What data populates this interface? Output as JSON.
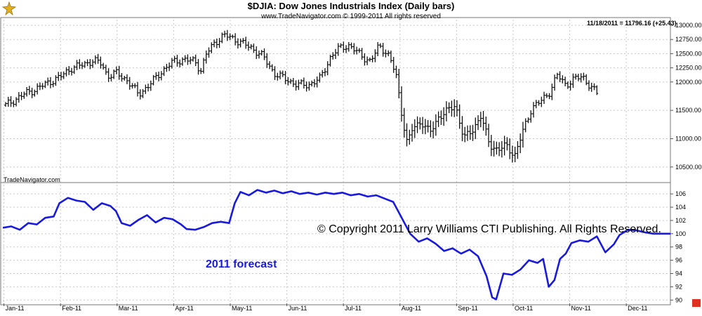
{
  "header": {
    "title": "$DJIA:  Dow Jones Industrials Index  (Daily bars)",
    "subtitle": "www.TradeNavigator.com © 1999-2011 All rights reserved",
    "last_value": "11/18/2011 = 11796.16 (+25.43)",
    "credit": "TradeNavigator.com",
    "logo_icon": "tradenavigator-logo-icon"
  },
  "annotations": {
    "copyright": "© Copyright 2011 Larry Williams CTI Publishing. All Rights Reserved.",
    "forecast_label": "2011 forecast"
  },
  "colors": {
    "forecast_line": "#1a1adc",
    "bars": "#000000",
    "grid": "#c8c8c8",
    "forecast_label": "#1a1adc"
  },
  "chart_data": [
    {
      "type": "line",
      "subtype": "ohlc-bars",
      "title": "$DJIA:  Dow Jones Industrials Index  (Daily bars)",
      "ylim": [
        10250,
        13100
      ],
      "yticks": [
        10500,
        11000,
        11500,
        12000,
        12250,
        12500,
        12750,
        13000
      ],
      "ytick_labels": [
        "10500.00",
        "11000.00",
        "11500.00",
        "12000.00",
        "12250.00",
        "12500.00",
        "12750.00",
        "13000.00"
      ],
      "x_months": [
        "Jan-11",
        "Feb-11",
        "Mar-11",
        "Apr-11",
        "May-11",
        "Jun-11",
        "Jul-11",
        "Aug-11",
        "Sep-11",
        "Oct-11",
        "Nov-11",
        "Dec-11"
      ],
      "x_month_pos": [
        0,
        1,
        2,
        3,
        4,
        5,
        6,
        7,
        8,
        9,
        10,
        11
      ],
      "xlim": [
        0,
        11.8
      ],
      "grid": true,
      "weekly_close": [
        [
          0.05,
          11590
        ],
        [
          0.2,
          11680
        ],
        [
          0.4,
          11800
        ],
        [
          0.6,
          11880
        ],
        [
          0.8,
          11990
        ],
        [
          1.0,
          12080
        ],
        [
          1.2,
          12240
        ],
        [
          1.4,
          12300
        ],
        [
          1.6,
          12380
        ],
        [
          1.75,
          12320
        ],
        [
          1.85,
          12100
        ],
        [
          2.0,
          12160
        ],
        [
          2.2,
          12030
        ],
        [
          2.4,
          11780
        ],
        [
          2.6,
          11960
        ],
        [
          2.8,
          12180
        ],
        [
          3.0,
          12350
        ],
        [
          3.2,
          12400
        ],
        [
          3.4,
          12360
        ],
        [
          3.5,
          12200
        ],
        [
          3.6,
          12500
        ],
        [
          3.75,
          12700
        ],
        [
          3.9,
          12820
        ],
        [
          4.0,
          12800
        ],
        [
          4.2,
          12700
        ],
        [
          4.4,
          12600
        ],
        [
          4.6,
          12450
        ],
        [
          4.8,
          12150
        ],
        [
          5.0,
          12050
        ],
        [
          5.2,
          11950
        ],
        [
          5.4,
          11950
        ],
        [
          5.6,
          12050
        ],
        [
          5.8,
          12450
        ],
        [
          5.95,
          12600
        ],
        [
          6.1,
          12650
        ],
        [
          6.3,
          12500
        ],
        [
          6.5,
          12350
        ],
        [
          6.65,
          12650
        ],
        [
          6.8,
          12500
        ],
        [
          6.95,
          12140
        ],
        [
          7.05,
          11450
        ],
        [
          7.15,
          10900
        ],
        [
          7.25,
          11200
        ],
        [
          7.4,
          11300
        ],
        [
          7.55,
          11100
        ],
        [
          7.7,
          11380
        ],
        [
          7.85,
          11480
        ],
        [
          8.0,
          11600
        ],
        [
          8.15,
          11000
        ],
        [
          8.3,
          11150
        ],
        [
          8.45,
          11400
        ],
        [
          8.6,
          10900
        ],
        [
          8.75,
          10800
        ],
        [
          8.9,
          10880
        ],
        [
          9.05,
          10700
        ],
        [
          9.2,
          11150
        ],
        [
          9.35,
          11550
        ],
        [
          9.5,
          11650
        ],
        [
          9.65,
          11800
        ],
        [
          9.8,
          12120
        ],
        [
          9.95,
          11950
        ],
        [
          10.1,
          12050
        ],
        [
          10.25,
          12100
        ],
        [
          10.4,
          11900
        ],
        [
          10.5,
          11800
        ]
      ]
    },
    {
      "type": "line",
      "series": [
        {
          "name": "2011 forecast"
        }
      ],
      "ylim": [
        89.5,
        107.5
      ],
      "yticks": [
        90,
        92,
        94,
        96,
        98,
        100,
        102,
        104,
        106
      ],
      "ytick_labels": [
        "90",
        "92",
        "94",
        "96",
        "98",
        "100",
        "102",
        "104",
        "106"
      ],
      "xlim": [
        0,
        11.8
      ],
      "grid": true,
      "points": [
        [
          0.0,
          100.9
        ],
        [
          0.15,
          101.1
        ],
        [
          0.3,
          100.6
        ],
        [
          0.45,
          101.6
        ],
        [
          0.6,
          101.4
        ],
        [
          0.75,
          102.4
        ],
        [
          0.9,
          102.6
        ],
        [
          1.0,
          104.6
        ],
        [
          1.15,
          105.4
        ],
        [
          1.3,
          105.0
        ],
        [
          1.45,
          104.8
        ],
        [
          1.6,
          103.6
        ],
        [
          1.75,
          104.6
        ],
        [
          1.9,
          104.2
        ],
        [
          2.0,
          103.4
        ],
        [
          2.1,
          101.6
        ],
        [
          2.25,
          101.2
        ],
        [
          2.4,
          102.1
        ],
        [
          2.55,
          102.8
        ],
        [
          2.7,
          101.7
        ],
        [
          2.85,
          102.4
        ],
        [
          3.0,
          102.2
        ],
        [
          3.15,
          101.4
        ],
        [
          3.25,
          100.7
        ],
        [
          3.4,
          100.6
        ],
        [
          3.55,
          101.0
        ],
        [
          3.7,
          101.6
        ],
        [
          3.85,
          101.8
        ],
        [
          4.0,
          101.6
        ],
        [
          4.1,
          104.6
        ],
        [
          4.2,
          106.3
        ],
        [
          4.35,
          105.8
        ],
        [
          4.5,
          106.6
        ],
        [
          4.65,
          106.2
        ],
        [
          4.8,
          106.5
        ],
        [
          4.95,
          106.1
        ],
        [
          5.1,
          106.4
        ],
        [
          5.25,
          106.0
        ],
        [
          5.4,
          106.2
        ],
        [
          5.55,
          105.9
        ],
        [
          5.7,
          106.2
        ],
        [
          5.85,
          106.0
        ],
        [
          6.0,
          106.2
        ],
        [
          6.15,
          105.8
        ],
        [
          6.3,
          106.0
        ],
        [
          6.45,
          105.6
        ],
        [
          6.6,
          105.8
        ],
        [
          6.75,
          105.3
        ],
        [
          6.9,
          104.8
        ],
        [
          7.0,
          103.2
        ],
        [
          7.1,
          101.6
        ],
        [
          7.2,
          100.0
        ],
        [
          7.35,
          98.8
        ],
        [
          7.5,
          99.3
        ],
        [
          7.65,
          98.5
        ],
        [
          7.8,
          97.4
        ],
        [
          7.95,
          97.8
        ],
        [
          8.1,
          97.0
        ],
        [
          8.25,
          97.6
        ],
        [
          8.4,
          96.6
        ],
        [
          8.55,
          93.6
        ],
        [
          8.65,
          90.4
        ],
        [
          8.72,
          90.1
        ],
        [
          8.85,
          94.0
        ],
        [
          9.0,
          93.8
        ],
        [
          9.15,
          94.6
        ],
        [
          9.3,
          96.0
        ],
        [
          9.45,
          95.6
        ],
        [
          9.55,
          96.2
        ],
        [
          9.65,
          92.0
        ],
        [
          9.75,
          93.0
        ],
        [
          9.85,
          96.2
        ],
        [
          9.95,
          97.0
        ],
        [
          10.05,
          98.6
        ],
        [
          10.2,
          99.0
        ],
        [
          10.35,
          98.8
        ],
        [
          10.5,
          99.6
        ],
        [
          10.65,
          97.2
        ],
        [
          10.8,
          98.4
        ],
        [
          10.9,
          99.8
        ],
        [
          11.05,
          100.6
        ],
        [
          11.2,
          100.5
        ],
        [
          11.35,
          100.2
        ],
        [
          11.5,
          100.0
        ],
        [
          11.8,
          100.0
        ]
      ]
    }
  ]
}
